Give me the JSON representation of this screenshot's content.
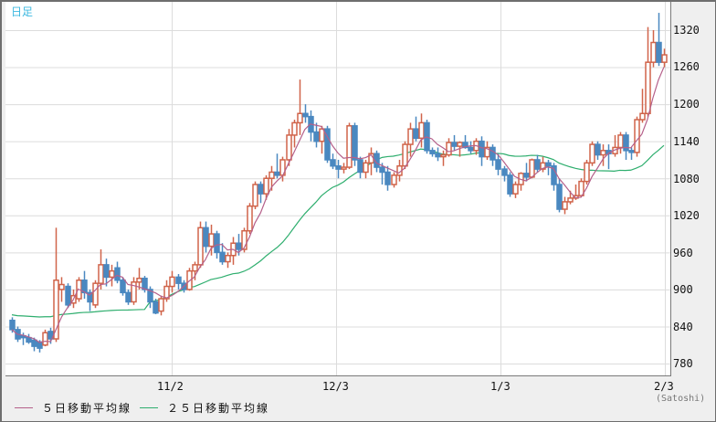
{
  "chart_title": "日足",
  "unit_label": "(Satoshi)",
  "y_ticks": [
    "1320",
    "1260",
    "1200",
    "1140",
    "1080",
    "1020",
    "960",
    "900",
    "840",
    "780"
  ],
  "x_ticks": [
    "11/2",
    "12/3",
    "1/3",
    "2/3"
  ],
  "legend": [
    {
      "label": "５日移動平均線",
      "color": "#b5608a"
    },
    {
      "label": "２５日移動平均線",
      "color": "#2eae6e"
    }
  ],
  "colors": {
    "up": "#d0644a",
    "down": "#4a88c0",
    "grid": "#dcdcdc",
    "title": "#3cb8e0"
  },
  "chart_data": {
    "type": "candlestick",
    "title": "日足",
    "xlabel": "",
    "ylabel": "(Satoshi)",
    "ylim": [
      760,
      1350
    ],
    "x_tick_labels": [
      "11/2",
      "12/3",
      "1/3",
      "2/3"
    ],
    "y_tick_labels": [
      780,
      840,
      900,
      960,
      1020,
      1080,
      1140,
      1200,
      1260,
      1320
    ],
    "grid": true,
    "legend": [
      "5日移動平均線",
      "25日移動平均線"
    ],
    "series": [
      {
        "name": "candles (o,h,l,c)",
        "values": [
          [
            850,
            855,
            830,
            835
          ],
          [
            835,
            840,
            815,
            820
          ],
          [
            825,
            830,
            810,
            823
          ],
          [
            822,
            828,
            812,
            815
          ],
          [
            818,
            822,
            800,
            808
          ],
          [
            815,
            818,
            798,
            805
          ],
          [
            810,
            835,
            808,
            830
          ],
          [
            832,
            838,
            812,
            820
          ],
          [
            820,
            1000,
            815,
            915
          ],
          [
            900,
            920,
            880,
            908
          ],
          [
            905,
            910,
            870,
            875
          ],
          [
            878,
            900,
            870,
            890
          ],
          [
            885,
            920,
            880,
            915
          ],
          [
            915,
            930,
            885,
            895
          ],
          [
            895,
            900,
            865,
            880
          ],
          [
            875,
            915,
            870,
            910
          ],
          [
            910,
            965,
            900,
            940
          ],
          [
            940,
            950,
            905,
            920
          ],
          [
            920,
            940,
            905,
            930
          ],
          [
            935,
            945,
            910,
            915
          ],
          [
            915,
            920,
            890,
            895
          ],
          [
            895,
            900,
            875,
            880
          ],
          [
            880,
            920,
            875,
            912
          ],
          [
            912,
            935,
            900,
            918
          ],
          [
            918,
            922,
            895,
            900
          ],
          [
            900,
            905,
            870,
            880
          ],
          [
            880,
            885,
            860,
            862
          ],
          [
            865,
            890,
            858,
            885
          ],
          [
            885,
            915,
            880,
            905
          ],
          [
            905,
            930,
            895,
            920
          ],
          [
            920,
            925,
            900,
            910
          ],
          [
            910,
            915,
            895,
            900
          ],
          [
            900,
            935,
            898,
            930
          ],
          [
            930,
            945,
            915,
            940
          ],
          [
            940,
            1010,
            935,
            1000
          ],
          [
            1000,
            1010,
            960,
            970
          ],
          [
            970,
            1005,
            955,
            990
          ],
          [
            990,
            995,
            950,
            960
          ],
          [
            960,
            975,
            940,
            945
          ],
          [
            945,
            960,
            935,
            955
          ],
          [
            955,
            985,
            940,
            975
          ],
          [
            975,
            990,
            955,
            965
          ],
          [
            965,
            1000,
            960,
            995
          ],
          [
            995,
            1040,
            990,
            1035
          ],
          [
            1035,
            1075,
            1030,
            1070
          ],
          [
            1070,
            1075,
            1040,
            1055
          ],
          [
            1055,
            1085,
            1045,
            1080
          ],
          [
            1080,
            1100,
            1060,
            1090
          ],
          [
            1090,
            1120,
            1080,
            1085
          ],
          [
            1085,
            1115,
            1075,
            1110
          ],
          [
            1110,
            1160,
            1100,
            1150
          ],
          [
            1150,
            1175,
            1130,
            1170
          ],
          [
            1170,
            1240,
            1150,
            1185
          ],
          [
            1185,
            1200,
            1170,
            1180
          ],
          [
            1180,
            1190,
            1140,
            1155
          ],
          [
            1155,
            1170,
            1130,
            1140
          ],
          [
            1140,
            1165,
            1120,
            1160
          ],
          [
            1160,
            1165,
            1105,
            1110
          ],
          [
            1110,
            1120,
            1095,
            1100
          ],
          [
            1100,
            1110,
            1080,
            1095
          ],
          [
            1095,
            1105,
            1088,
            1098
          ],
          [
            1098,
            1170,
            1095,
            1165
          ],
          [
            1165,
            1170,
            1100,
            1110
          ],
          [
            1110,
            1115,
            1080,
            1090
          ],
          [
            1090,
            1110,
            1080,
            1105
          ],
          [
            1105,
            1130,
            1085,
            1120
          ],
          [
            1120,
            1125,
            1090,
            1098
          ],
          [
            1098,
            1105,
            1070,
            1090
          ],
          [
            1090,
            1100,
            1060,
            1070
          ],
          [
            1070,
            1090,
            1065,
            1085
          ],
          [
            1085,
            1110,
            1075,
            1100
          ],
          [
            1100,
            1140,
            1095,
            1135
          ],
          [
            1135,
            1170,
            1115,
            1160
          ],
          [
            1160,
            1180,
            1140,
            1145
          ],
          [
            1145,
            1185,
            1130,
            1170
          ],
          [
            1170,
            1175,
            1120,
            1125
          ],
          [
            1125,
            1130,
            1115,
            1120
          ],
          [
            1120,
            1130,
            1108,
            1115
          ],
          [
            1115,
            1125,
            1100,
            1118
          ],
          [
            1118,
            1145,
            1115,
            1138
          ],
          [
            1138,
            1150,
            1125,
            1132
          ],
          [
            1132,
            1140,
            1115,
            1138
          ],
          [
            1138,
            1150,
            1128,
            1130
          ],
          [
            1130,
            1140,
            1120,
            1125
          ],
          [
            1125,
            1145,
            1118,
            1140
          ],
          [
            1140,
            1148,
            1100,
            1115
          ],
          [
            1115,
            1140,
            1110,
            1130
          ],
          [
            1130,
            1135,
            1100,
            1110
          ],
          [
            1110,
            1120,
            1085,
            1095
          ],
          [
            1095,
            1100,
            1075,
            1085
          ],
          [
            1085,
            1090,
            1050,
            1055
          ],
          [
            1055,
            1075,
            1048,
            1070
          ],
          [
            1070,
            1090,
            1060,
            1088
          ],
          [
            1088,
            1105,
            1075,
            1082
          ],
          [
            1082,
            1112,
            1080,
            1110
          ],
          [
            1110,
            1118,
            1090,
            1095
          ],
          [
            1095,
            1115,
            1090,
            1105
          ],
          [
            1105,
            1110,
            1085,
            1100
          ],
          [
            1100,
            1105,
            1060,
            1070
          ],
          [
            1070,
            1080,
            1025,
            1030
          ],
          [
            1030,
            1050,
            1022,
            1042
          ],
          [
            1042,
            1060,
            1038,
            1048
          ],
          [
            1048,
            1070,
            1045,
            1052
          ],
          [
            1052,
            1080,
            1050,
            1075
          ],
          [
            1075,
            1110,
            1070,
            1105
          ],
          [
            1105,
            1140,
            1100,
            1135
          ],
          [
            1135,
            1140,
            1110,
            1118
          ],
          [
            1118,
            1135,
            1100,
            1125
          ],
          [
            1125,
            1135,
            1095,
            1120
          ],
          [
            1120,
            1150,
            1115,
            1130
          ],
          [
            1130,
            1155,
            1120,
            1150
          ],
          [
            1150,
            1155,
            1110,
            1125
          ],
          [
            1125,
            1130,
            1110,
            1122
          ],
          [
            1122,
            1180,
            1115,
            1175
          ],
          [
            1175,
            1225,
            1170,
            1185
          ],
          [
            1185,
            1325,
            1180,
            1268
          ],
          [
            1268,
            1320,
            1260,
            1300
          ],
          [
            1300,
            1348,
            1262,
            1268
          ],
          [
            1268,
            1290,
            1260,
            1280
          ]
        ]
      },
      {
        "name": "5日移動平均線",
        "values": []
      },
      {
        "name": "25日移動平均線",
        "values": []
      }
    ]
  }
}
